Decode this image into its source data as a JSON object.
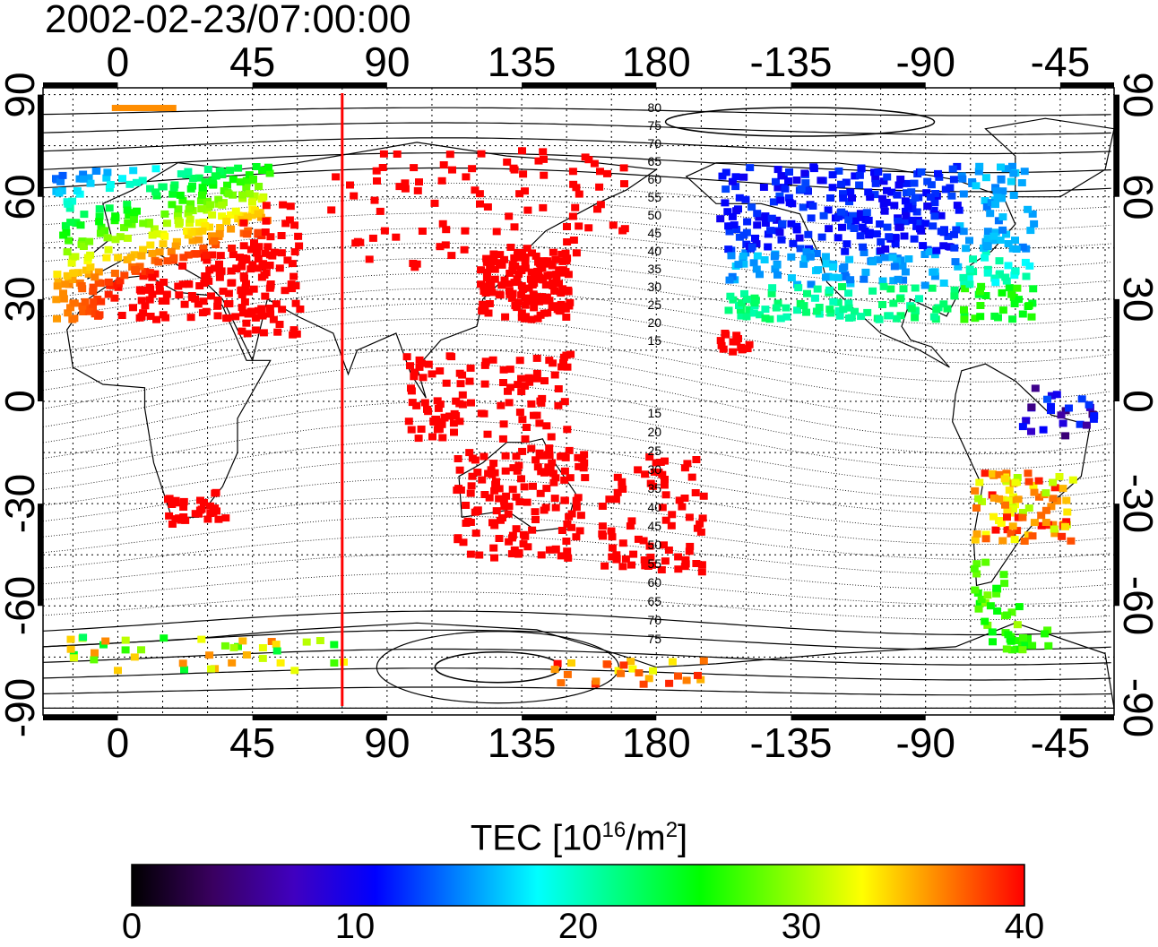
{
  "timestamp": "2002-02-23/07:00:00",
  "map": {
    "lon_ticks": [
      {
        "lon": 0,
        "label": "0"
      },
      {
        "lon": 45,
        "label": "45"
      },
      {
        "lon": 90,
        "label": "90"
      },
      {
        "lon": 135,
        "label": "135"
      },
      {
        "lon": 180,
        "label": "180"
      },
      {
        "lon": 225,
        "label": "-135"
      },
      {
        "lon": 270,
        "label": "-90"
      },
      {
        "lon": 315,
        "label": "-45"
      }
    ],
    "lat_ticks": [
      {
        "lat": 90,
        "label": "90"
      },
      {
        "lat": 60,
        "label": "60"
      },
      {
        "lat": 30,
        "label": "30"
      },
      {
        "lat": 0,
        "label": "0"
      },
      {
        "lat": -30,
        "label": "-30"
      },
      {
        "lat": -60,
        "label": "-60"
      },
      {
        "lat": -90,
        "label": "-90"
      }
    ],
    "lon_range": [
      -25,
      333
    ],
    "lat_range": [
      -92,
      92
    ],
    "red_meridian_lon": 75,
    "contour_labels_north": [
      "80",
      "75",
      "70",
      "65",
      "60",
      "55",
      "50",
      "45",
      "40",
      "35",
      "30",
      "25",
      "20",
      "15"
    ],
    "contour_labels_south": [
      "15",
      "20",
      "25",
      "30",
      "35",
      "40",
      "45",
      "50",
      "55",
      "60",
      "65",
      "70",
      "75"
    ]
  },
  "colorbar": {
    "title_prefix": "TEC  [10",
    "title_sup1": "16",
    "title_mid": "/m",
    "title_sup2": "2",
    "title_suffix": "]",
    "min": 0,
    "max": 40,
    "tick_labels": [
      "0",
      "10",
      "20",
      "30",
      "40"
    ],
    "stops": [
      "#000000",
      "#3a0060",
      "#4000c0",
      "#0000ff",
      "#0080ff",
      "#00ffff",
      "#00ff80",
      "#00ff00",
      "#80ff00",
      "#ffff00",
      "#ff8000",
      "#ff0000"
    ]
  }
}
